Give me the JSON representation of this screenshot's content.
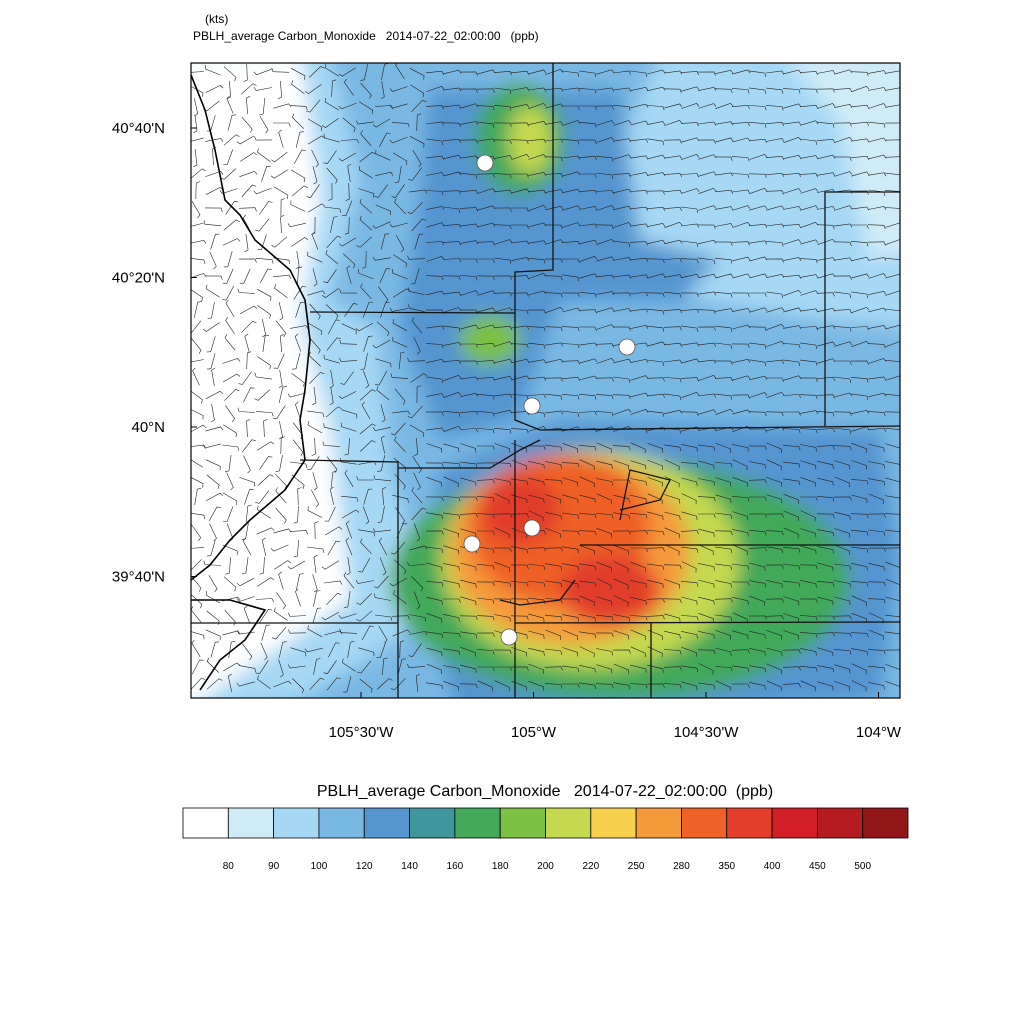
{
  "header": {
    "units": "(kts)",
    "title": "PBLH_average Carbon_Monoxide   2014-07-22_02:00:00   (ppb)"
  },
  "map": {
    "lat_labels": [
      "40°40'N",
      "40°20'N",
      "40°N",
      "39°40'N"
    ],
    "lon_labels": [
      "105°30'W",
      "105°W",
      "104°30'W",
      "104°W"
    ]
  },
  "colorbar": {
    "title": "PBLH_average Carbon_Monoxide   2014-07-22_02:00:00  (ppb)",
    "colors": [
      "#ffffff",
      "#d0ebf8",
      "#a6d8f4",
      "#7ab8e4",
      "#5595d0",
      "#3f969c",
      "#43a85a",
      "#7cc144",
      "#c4d94f",
      "#f7d04e",
      "#f59a3b",
      "#ee6128",
      "#e23e2a",
      "#d21f28",
      "#b51c22",
      "#921517"
    ],
    "labels": [
      80,
      90,
      100,
      120,
      140,
      160,
      180,
      200,
      220,
      250,
      280,
      350,
      400,
      450,
      500
    ]
  }
}
